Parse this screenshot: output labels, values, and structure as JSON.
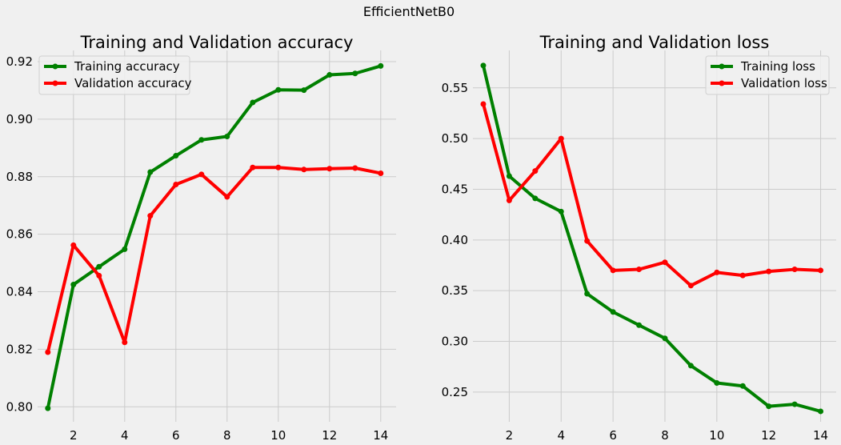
{
  "figure": {
    "suptitle": "EfficientNetB0",
    "background": "#f0f0f0"
  },
  "chart_data": [
    {
      "type": "line",
      "title": "Training and Validation accuracy",
      "xlabel": "",
      "ylabel": "",
      "xlim": [
        0.6,
        14.6
      ],
      "ylim": [
        0.7948,
        0.9239
      ],
      "xticks": [
        2,
        4,
        6,
        8,
        10,
        12,
        14
      ],
      "yticks": [
        0.8,
        0.82,
        0.84,
        0.86,
        0.88,
        0.9,
        0.92
      ],
      "ytick_decimals": 2,
      "grid": true,
      "legend": "top-left",
      "x": [
        1,
        2,
        3,
        4,
        5,
        6,
        7,
        8,
        9,
        10,
        11,
        12,
        13,
        14
      ],
      "series": [
        {
          "name": "Training accuracy",
          "color": "#008000",
          "values": [
            0.7995,
            0.8425,
            0.8487,
            0.8548,
            0.8816,
            0.8873,
            0.8928,
            0.894,
            0.9058,
            0.9102,
            0.9101,
            0.9154,
            0.9159,
            0.9185
          ]
        },
        {
          "name": "Validation accuracy",
          "color": "#ff0000",
          "values": [
            0.819,
            0.8562,
            0.8456,
            0.8224,
            0.8664,
            0.8773,
            0.8808,
            0.873,
            0.8832,
            0.8832,
            0.8825,
            0.8828,
            0.883,
            0.8812
          ]
        }
      ]
    },
    {
      "type": "line",
      "title": "Training and Validation loss",
      "xlabel": "",
      "ylabel": "",
      "xlim": [
        0.6,
        14.6
      ],
      "ylim": [
        0.2207,
        0.5869
      ],
      "xticks": [
        2,
        4,
        6,
        8,
        10,
        12,
        14
      ],
      "yticks": [
        0.25,
        0.3,
        0.35,
        0.4,
        0.45,
        0.5,
        0.55
      ],
      "ytick_decimals": 2,
      "grid": true,
      "legend": "top-right",
      "x": [
        1,
        2,
        3,
        4,
        5,
        6,
        7,
        8,
        9,
        10,
        11,
        12,
        13,
        14
      ],
      "series": [
        {
          "name": "Training loss",
          "color": "#008000",
          "values": [
            0.572,
            0.463,
            0.441,
            0.428,
            0.347,
            0.329,
            0.316,
            0.303,
            0.276,
            0.259,
            0.256,
            0.236,
            0.238,
            0.231
          ]
        },
        {
          "name": "Validation loss",
          "color": "#ff0000",
          "values": [
            0.534,
            0.439,
            0.468,
            0.5,
            0.399,
            0.37,
            0.371,
            0.378,
            0.355,
            0.368,
            0.365,
            0.369,
            0.371,
            0.37
          ]
        }
      ]
    }
  ]
}
